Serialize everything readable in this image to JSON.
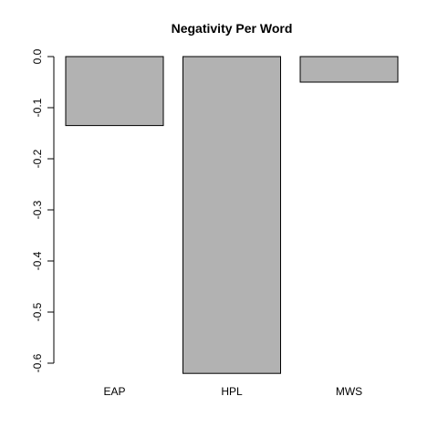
{
  "chart_data": {
    "type": "bar",
    "title": "Negativity Per Word",
    "xlabel": "",
    "ylabel": "",
    "categories": [
      "EAP",
      "HPL",
      "MWS"
    ],
    "values": [
      -0.135,
      -0.62,
      -0.05
    ],
    "ylim": [
      -0.6,
      0.0
    ],
    "yticks": [
      0.0,
      -0.1,
      -0.2,
      -0.3,
      -0.4,
      -0.5,
      -0.6
    ],
    "ytick_labels": [
      "0.0",
      "-0.1",
      "-0.2",
      "-0.3",
      "-0.4",
      "-0.5",
      "-0.6"
    ],
    "grid": false,
    "legend": "none",
    "bar_color": "#b2b2b2",
    "border_color": "#000000"
  }
}
